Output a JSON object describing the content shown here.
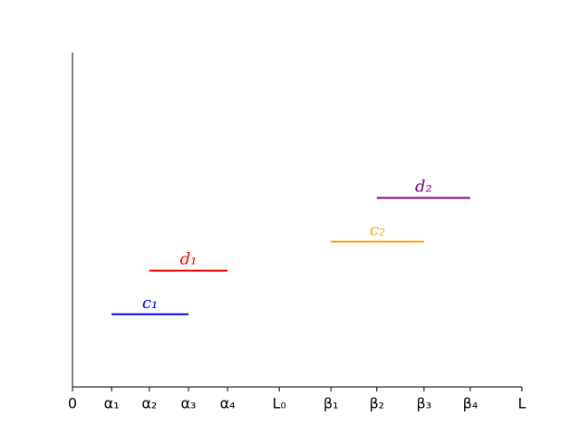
{
  "chart_data": {
    "type": "line",
    "xlim": [
      0,
      10
    ],
    "ylim": [
      0,
      4.6
    ],
    "xticks": [
      0,
      {
        "value": 0.87,
        "label": "α₁"
      },
      {
        "value": 1.71,
        "label": "α₂"
      },
      {
        "value": 2.58,
        "label": "α₃"
      },
      {
        "value": 3.45,
        "label": "α₄"
      },
      {
        "value": 4.6,
        "label": "L₀"
      },
      {
        "value": 5.75,
        "label": "β₁"
      },
      {
        "value": 6.77,
        "label": "β₂"
      },
      {
        "value": 7.82,
        "label": "β₃"
      },
      {
        "value": 8.85,
        "label": "β₄"
      },
      {
        "value": 10,
        "label": "L"
      }
    ],
    "series": [
      {
        "name": "c₁",
        "color": "#0000ff",
        "x": [
          0.87,
          2.58
        ],
        "values": [
          1,
          1
        ]
      },
      {
        "name": "d₁",
        "color": "#ff0000",
        "x": [
          1.71,
          3.45
        ],
        "values": [
          1.6,
          1.6
        ]
      },
      {
        "name": "c₂",
        "color": "#ffa500",
        "x": [
          5.75,
          7.82
        ],
        "values": [
          2,
          2
        ]
      },
      {
        "name": "d₂",
        "color": "#800080",
        "x": [
          6.77,
          8.85
        ],
        "values": [
          2.6,
          2.6
        ]
      }
    ]
  }
}
